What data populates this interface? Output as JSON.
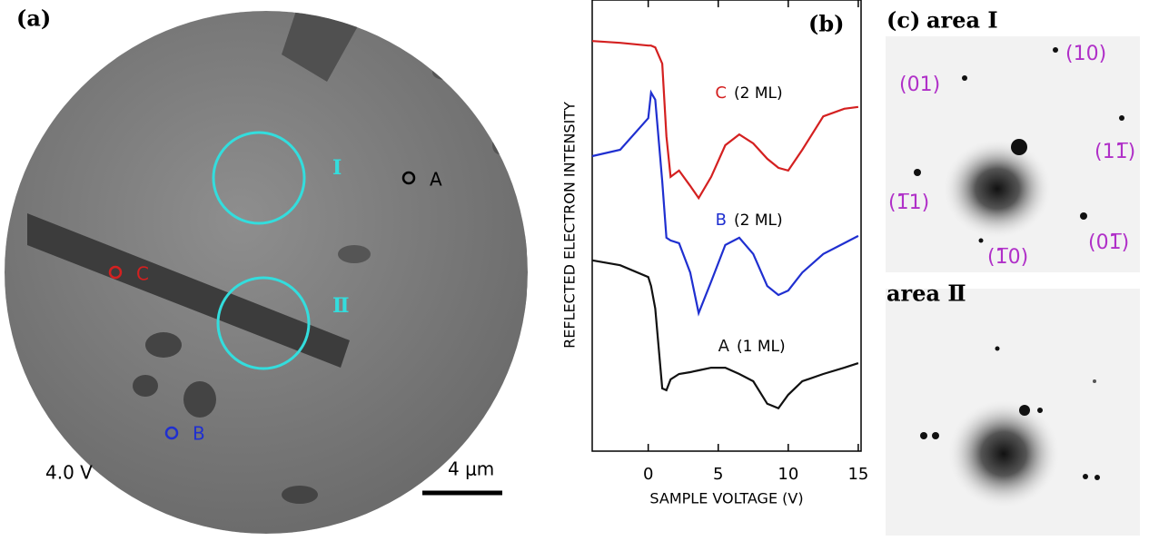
{
  "panel_a": {
    "label": "(a)",
    "areas": [
      "Ⅰ",
      "Ⅱ"
    ],
    "points": [
      "A",
      "B",
      "C"
    ],
    "voltage": "4.0 V",
    "scale_bar": "4 μm"
  },
  "chart_data": {
    "type": "line",
    "label": "(b)",
    "x_label": "SAMPLE VOLTAGE (V)",
    "y_label": "REFLECTED ELECTRON INTENSITY",
    "x": [
      -4,
      -2,
      0,
      0.2,
      0.5,
      1,
      1.3,
      1.6,
      2.2,
      3,
      3.6,
      4.5,
      5.5,
      6.5,
      7.5,
      8.5,
      9.3,
      10,
      11,
      12.5,
      14,
      15
    ],
    "xlim": [
      -4,
      15.2
    ],
    "xticks": [
      0,
      5,
      10,
      15
    ],
    "ylim": [
      0,
      100
    ],
    "series": [
      {
        "name": "C",
        "coverage": "(2 ML)",
        "color": "#d42020",
        "values": [
          90.9,
          90.5,
          89.9,
          89.9,
          89.5,
          85.9,
          69.8,
          60.8,
          62.2,
          58.8,
          56.1,
          60.8,
          67.8,
          70.2,
          68.2,
          64.8,
          62.8,
          62.2,
          66.8,
          74.2,
          75.9,
          76.3
        ]
      },
      {
        "name": "B",
        "coverage": "(2 ML)",
        "color": "#1f2fd0",
        "values": [
          65.4,
          66.8,
          73.8,
          79.5,
          77.9,
          59.8,
          47.3,
          46.7,
          46.1,
          39.6,
          30.6,
          37.6,
          45.7,
          47.3,
          43.7,
          36.6,
          34.6,
          35.6,
          39.6,
          43.7,
          46.1,
          47.7
        ]
      },
      {
        "name": "A",
        "coverage": "(1 ML)",
        "color": "#111111",
        "values": [
          42.3,
          41.2,
          38.6,
          36.6,
          31.6,
          13.9,
          13.5,
          15.9,
          17.1,
          17.5,
          17.9,
          18.5,
          18.5,
          17.1,
          15.5,
          10.5,
          9.5,
          12.5,
          15.5,
          17.1,
          18.5,
          19.5
        ]
      }
    ]
  },
  "panel_c": {
    "label": "(c)",
    "area1": "area Ⅰ",
    "area2": "area Ⅱ",
    "spots": [
      "(10)",
      "(01)",
      "(11̅)",
      "(1̅1)",
      "(01̅)",
      "(1̅0)"
    ]
  }
}
